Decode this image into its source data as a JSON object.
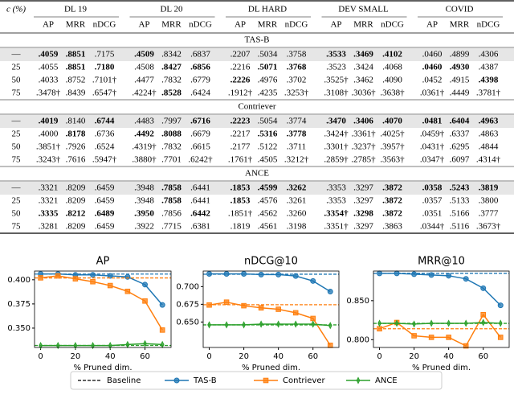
{
  "table": {
    "c_header": "c (%)",
    "groups": [
      "DL 19",
      "DL 20",
      "DL HARD",
      "DEV SMALL",
      "COVID"
    ],
    "metrics": [
      "AP",
      "MRR",
      "nDCG"
    ],
    "sections": [
      {
        "name": "TAS-B",
        "rows": [
          {
            "c": "—",
            "highlight": true,
            "cells": [
              ".4059",
              ".8851",
              ".7175",
              ".4509",
              ".8342",
              ".6837",
              ".2207",
              ".5034",
              ".3758",
              ".3533",
              ".3469",
              ".4102",
              ".0460",
              ".4899",
              ".4306"
            ],
            "bold": [
              0,
              1,
              3,
              9,
              10,
              11
            ]
          },
          {
            "c": "25",
            "cells": [
              ".4055",
              ".8851",
              ".7180",
              ".4508",
              ".8427",
              ".6856",
              ".2216",
              ".5071",
              ".3768",
              ".3523",
              ".3424",
              ".4068",
              ".0460",
              ".4930",
              ".4387"
            ],
            "bold": [
              1,
              2,
              4,
              5,
              7,
              8,
              12,
              13
            ]
          },
          {
            "c": "50",
            "cells": [
              ".4033",
              ".8752",
              ".7101†",
              ".4477",
              ".7832",
              ".6779",
              ".2226",
              ".4976",
              ".3702",
              ".3525†",
              ".3462",
              ".4090",
              ".0452",
              ".4915",
              ".4398"
            ],
            "bold": [
              6,
              14
            ]
          },
          {
            "c": "75",
            "cells": [
              ".3478†",
              ".8439",
              ".6547†",
              ".4224†",
              ".8528",
              ".6424",
              ".1912†",
              ".4235",
              ".3253†",
              ".3108†",
              ".3036†",
              ".3638†",
              ".0361†",
              ".4449",
              ".3781†"
            ],
            "bold": [
              4
            ]
          }
        ]
      },
      {
        "name": "Contriever",
        "rows": [
          {
            "c": "—",
            "highlight": true,
            "cells": [
              ".4019",
              ".8140",
              ".6744",
              ".4483",
              ".7997",
              ".6716",
              ".2223",
              ".5054",
              ".3774",
              ".3470",
              ".3406",
              ".4070",
              ".0481",
              ".6404",
              ".4963"
            ],
            "bold": [
              0,
              2,
              5,
              6,
              9,
              10,
              11,
              12,
              13,
              14
            ]
          },
          {
            "c": "25",
            "cells": [
              ".4000",
              ".8178",
              ".6736",
              ".4492",
              ".8088",
              ".6679",
              ".2217",
              ".5316",
              ".3778",
              ".3424†",
              ".3361†",
              ".4025†",
              ".0459†",
              ".6337",
              ".4863"
            ],
            "bold": [
              1,
              3,
              4,
              7,
              8
            ]
          },
          {
            "c": "50",
            "cells": [
              ".3851†",
              ".7926",
              ".6524",
              ".4319†",
              ".7832",
              ".6615",
              ".2177",
              ".5122",
              ".3711",
              ".3301†",
              ".3237†",
              ".3957†",
              ".0431†",
              ".6295",
              ".4844"
            ],
            "bold": []
          },
          {
            "c": "75",
            "cells": [
              ".3243†",
              ".7616",
              ".5947†",
              ".3880†",
              ".7701",
              ".6242†",
              ".1761†",
              ".4505",
              ".3212†",
              ".2859†",
              ".2785†",
              ".3563†",
              ".0347†",
              ".6097",
              ".4314†"
            ],
            "bold": []
          }
        ]
      },
      {
        "name": "ANCE",
        "rows": [
          {
            "c": "—",
            "highlight": true,
            "cells": [
              ".3321",
              ".8209",
              ".6459",
              ".3948",
              ".7858",
              ".6441",
              ".1853",
              ".4599",
              ".3262",
              ".3353",
              ".3297",
              ".3872",
              ".0358",
              ".5243",
              ".3819"
            ],
            "bold": [
              4,
              6,
              7,
              8,
              11,
              12,
              13,
              14
            ]
          },
          {
            "c": "25",
            "cells": [
              ".3321",
              ".8209",
              ".6459",
              ".3948",
              ".7858",
              ".6441",
              ".1853",
              ".4576",
              ".3261",
              ".3353",
              ".3297",
              ".3872",
              ".0357",
              ".5133",
              ".3800"
            ],
            "bold": [
              4,
              6,
              11
            ]
          },
          {
            "c": "50",
            "cells": [
              ".3335",
              ".8212",
              ".6489",
              ".3950",
              ".7856",
              ".6442",
              ".1851†",
              ".4562",
              ".3260",
              ".3354†",
              ".3298",
              ".3872",
              ".0351",
              ".5166",
              ".3777"
            ],
            "bold": [
              0,
              1,
              2,
              3,
              5,
              9,
              10,
              11
            ]
          },
          {
            "c": "75",
            "cells": [
              ".3281",
              ".8209",
              ".6459",
              ".3922",
              ".7715",
              ".6381",
              ".1819",
              ".4561",
              ".3198",
              ".3351†",
              ".3297",
              ".3863",
              ".0344†",
              ".5116",
              ".3673†"
            ],
            "bold": []
          }
        ]
      }
    ]
  },
  "chart_data": [
    {
      "type": "line",
      "title": "AP",
      "x_label": "% Pruned dim.",
      "x": [
        0,
        10,
        20,
        30,
        40,
        50,
        60,
        70
      ],
      "xlim": [
        -3.5,
        75
      ],
      "xticks": [
        0,
        20,
        40,
        60
      ],
      "ylim": [
        0.33,
        0.409
      ],
      "yticks": [
        {
          "value": 0.35,
          "label": "0.350"
        },
        {
          "value": 0.375,
          "label": "0.375"
        },
        {
          "value": 0.4,
          "label": "0.400"
        }
      ],
      "series": [
        {
          "name": "TAS-B",
          "color": "#1f77b4",
          "marker": "circle",
          "baseline": 0.4059,
          "values": [
            0.406,
            0.406,
            0.405,
            0.405,
            0.404,
            0.403,
            0.395,
            0.374
          ]
        },
        {
          "name": "Contriever",
          "color": "#ff7f0e",
          "marker": "square",
          "baseline": 0.4019,
          "values": [
            0.402,
            0.404,
            0.401,
            0.398,
            0.394,
            0.388,
            0.378,
            0.348
          ]
        },
        {
          "name": "ANCE",
          "color": "#2ca02c",
          "marker": "diamond",
          "baseline": 0.3321,
          "values": [
            0.332,
            0.332,
            0.332,
            0.332,
            0.332,
            0.333,
            0.334,
            0.333
          ]
        }
      ]
    },
    {
      "type": "line",
      "title": "nDCG@10",
      "x_label": "% Pruned dim.",
      "x": [
        0,
        10,
        20,
        30,
        40,
        50,
        60,
        70
      ],
      "xlim": [
        -3.5,
        75
      ],
      "xticks": [
        0,
        20,
        40,
        60
      ],
      "ylim": [
        0.614,
        0.722
      ],
      "yticks": [
        {
          "value": 0.65,
          "label": "0.650"
        },
        {
          "value": 0.675,
          "label": "0.675"
        },
        {
          "value": 0.7,
          "label": "0.700"
        }
      ],
      "series": [
        {
          "color": "#1f77b4",
          "marker": "circle",
          "baseline": 0.7175,
          "values": [
            0.718,
            0.718,
            0.718,
            0.717,
            0.717,
            0.715,
            0.708,
            0.693
          ]
        },
        {
          "color": "#ff7f0e",
          "marker": "square",
          "baseline": 0.6744,
          "values": [
            0.674,
            0.678,
            0.673,
            0.67,
            0.668,
            0.663,
            0.655,
            0.617
          ]
        },
        {
          "color": "#2ca02c",
          "marker": "diamond",
          "baseline": 0.6459,
          "values": [
            0.646,
            0.646,
            0.646,
            0.647,
            0.647,
            0.647,
            0.647,
            0.645
          ]
        }
      ]
    },
    {
      "type": "line",
      "title": "MRR@10",
      "x_label": "% Pruned dim.",
      "x": [
        0,
        10,
        20,
        30,
        40,
        50,
        60,
        70
      ],
      "xlim": [
        -3.5,
        75
      ],
      "xticks": [
        0,
        20,
        40,
        60
      ],
      "ylim": [
        0.79,
        0.888
      ],
      "yticks": [
        {
          "value": 0.8,
          "label": "0.800"
        },
        {
          "value": 0.85,
          "label": "0.850"
        }
      ],
      "series": [
        {
          "color": "#1f77b4",
          "marker": "circle",
          "baseline": 0.8851,
          "values": [
            0.885,
            0.885,
            0.884,
            0.883,
            0.882,
            0.878,
            0.866,
            0.844
          ]
        },
        {
          "color": "#ff7f0e",
          "marker": "square",
          "baseline": 0.814,
          "values": [
            0.814,
            0.822,
            0.805,
            0.803,
            0.803,
            0.792,
            0.832,
            0.803
          ]
        },
        {
          "color": "#2ca02c",
          "marker": "diamond",
          "baseline": 0.8209,
          "values": [
            0.821,
            0.821,
            0.82,
            0.821,
            0.821,
            0.821,
            0.822,
            0.821
          ]
        }
      ]
    }
  ],
  "legend": {
    "baseline": "Baseline",
    "position": "bottom"
  }
}
